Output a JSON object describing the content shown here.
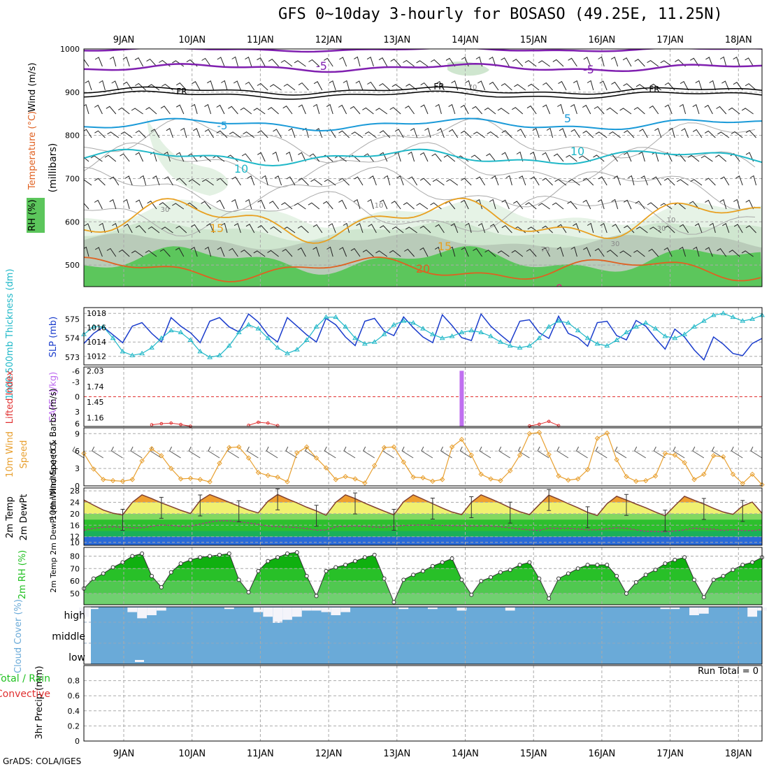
{
  "title": "GFS 0~10day 3-hourly for BOSASO (49.25E, 11.25N)",
  "credit": "GrADS: COLA/IGES",
  "colors": {
    "slp": "#1a3ccc",
    "thickness": "#20b8c8",
    "cape": "#c070f0",
    "lifted_index": "#e03030",
    "wind10": "#e8a030",
    "temp2m": "#804030",
    "dewpt": "#a04080",
    "rh_fill": "#20c020",
    "cloud": "#6aaad8",
    "purple_iso": "#8020b0",
    "blue_iso": "#1a9ad8",
    "cyan_iso": "#20b8c8",
    "orange_iso": "#e8a020",
    "dark_orange_iso": "#e06020",
    "magenta_iso": "#e02080"
  },
  "chart_data": [
    {
      "type": "heatmap",
      "name": "upper_air",
      "ylabel": "Wind (m/s)",
      "ylabel_temp": "Temperature (°C)",
      "ylabel_rh": "RH (%)",
      "ylabel_units": "(millibars)",
      "yticks": [
        "500",
        "600",
        "700",
        "800",
        "900",
        "1000"
      ],
      "ylim": [
        450,
        1000
      ],
      "xticks": [
        "9JAN",
        "10JAN",
        "11JAN",
        "12JAN",
        "13JAN",
        "14JAN",
        "15JAN",
        "16JAN",
        "17JAN",
        "18JAN"
      ],
      "isotherm_labels": [
        "-5",
        "-5",
        "FR",
        "FR",
        "FR",
        "-5",
        "5",
        "10",
        "10",
        "15",
        "15",
        "20",
        "0"
      ],
      "rh_labels": [
        "70",
        "30",
        "10",
        "30",
        "10",
        "70",
        "30"
      ]
    },
    {
      "type": "line",
      "name": "slp_thickness",
      "ylabel_left": "1000-500mb Thickness (dm)",
      "ylabel_right": "SLP (mb)",
      "yticks_left": [
        "575",
        "574",
        "573"
      ],
      "yticks_right": [
        "1018",
        "1016",
        "1014",
        "1012"
      ],
      "ylim_left": [
        572.6,
        575.6
      ],
      "ylim_right": [
        1010.8,
        1018.8
      ],
      "series": [
        {
          "name": "SLP",
          "values": [
            1013.8,
            1015.2,
            1016.1,
            1015.0,
            1013.9,
            1016.2,
            1016.7,
            1015.2,
            1014.0,
            1017.4,
            1016.2,
            1015.3,
            1013.9,
            1016.9,
            1017.4,
            1016.1,
            1015.4,
            1017.9,
            1016.8,
            1015.0,
            1014.0,
            1017.4,
            1016.2,
            1015.0,
            1014.0,
            1017.3,
            1016.4,
            1014.7,
            1013.5,
            1016.9,
            1017.3,
            1015.5,
            1014.9,
            1017.5,
            1016.0,
            1014.7,
            1013.9,
            1017.8,
            1016.3,
            1014.6,
            1014.2,
            1017.9,
            1016.2,
            1015.0,
            1013.9,
            1016.9,
            1017.1,
            1015.3,
            1014.5,
            1017.6,
            1015.2,
            1014.6,
            1013.4,
            1016.7,
            1016.9,
            1014.9,
            1014.3,
            1017.0,
            1016.2,
            1014.5,
            1013.0,
            1015.8,
            1014.7,
            1012.9,
            1011.5,
            1014.7,
            1013.7,
            1012.4,
            1012.1,
            1013.8,
            1014.5
          ]
        },
        {
          "name": "Thickness",
          "values": [
            574.2,
            574.6,
            574.6,
            574.0,
            573.3,
            573.1,
            573.2,
            573.5,
            574.0,
            574.4,
            574.3,
            573.9,
            573.3,
            573.0,
            573.1,
            573.6,
            574.3,
            574.7,
            574.5,
            574.0,
            573.5,
            573.2,
            573.4,
            573.9,
            574.6,
            575.1,
            575.1,
            574.6,
            574.0,
            573.7,
            573.8,
            574.2,
            574.7,
            574.9,
            574.8,
            574.5,
            574.2,
            574.0,
            574.1,
            574.3,
            574.4,
            574.3,
            574.1,
            573.8,
            573.6,
            573.5,
            573.6,
            574.0,
            574.6,
            574.9,
            574.8,
            574.4,
            574.0,
            573.7,
            573.6,
            573.9,
            574.3,
            574.6,
            574.8,
            574.5,
            574.1,
            574.0,
            574.2,
            574.6,
            574.9,
            575.2,
            575.3,
            575.1,
            574.9,
            575.0,
            575.2
          ]
        }
      ]
    },
    {
      "type": "bar",
      "name": "cape_li",
      "ylabel_left": "Lifted Index",
      "ylabel_right": "CAPE (J/kg)",
      "yticks_left": [
        "-6",
        "-3",
        "0",
        "3",
        "6"
      ],
      "yticks_right": [
        "2.03",
        "1.74",
        "1.45",
        "1.16"
      ],
      "ylim_left": [
        -6,
        6
      ],
      "ylim_right": [
        1.0,
        2.1
      ],
      "series": [
        {
          "name": "CAPE",
          "index": 39,
          "value": 2.03
        },
        {
          "name": "Lifted Index",
          "values": [
            null,
            null,
            null,
            null,
            null,
            null,
            null,
            5.4,
            5.0,
            4.8,
            5.3,
            5.9,
            null,
            null,
            null,
            null,
            null,
            5.6,
            4.5,
            4.8,
            5.7,
            null,
            null,
            null,
            null,
            null,
            null,
            null,
            null,
            null,
            null,
            null,
            null,
            null,
            null,
            null,
            null,
            null,
            null,
            null,
            null,
            null,
            null,
            null,
            null,
            null,
            5.8,
            5.2,
            4.2,
            5.7,
            null
          ]
        }
      ]
    },
    {
      "type": "line",
      "name": "wind10m",
      "ylabel": "10m Wind Speed & Barbs (m/s)",
      "yticks": [
        "9",
        "6",
        "3",
        "0"
      ],
      "ylim": [
        0,
        10
      ],
      "series": [
        {
          "name": "10m Wind Speed",
          "values": [
            5.6,
            2.9,
            1.1,
            0.9,
            0.8,
            1.1,
            4.3,
            6.4,
            5.2,
            3.0,
            1.2,
            1.3,
            1.1,
            0.7,
            3.9,
            6.6,
            6.7,
            4.8,
            2.3,
            1.8,
            1.5,
            0.7,
            5.7,
            6.7,
            4.8,
            3.1,
            1.1,
            1.6,
            1.2,
            0.5,
            3.5,
            6.6,
            6.7,
            4.1,
            1.5,
            1.4,
            0.8,
            1.1,
            6.7,
            8.0,
            5.3,
            2.0,
            1.2,
            0.9,
            2.6,
            5.3,
            9.0,
            9.2,
            5.4,
            1.7,
            1.0,
            1.2,
            2.8,
            8.2,
            9.1,
            4.5,
            1.6,
            0.8,
            0.9,
            1.7,
            5.6,
            5.3,
            4.0,
            1.1,
            2.0,
            5.2,
            5.0,
            2.0,
            0.4,
            2.0,
            0.2
          ]
        }
      ]
    },
    {
      "type": "area",
      "name": "temp2m",
      "ylabel": "2m Temp 2m DewPt (6hr Min/Max) (°C)",
      "yticks": [
        "28",
        "24",
        "20",
        "16",
        "12",
        "10"
      ],
      "ylim": [
        9,
        29
      ],
      "series": [
        {
          "name": "2m Temp",
          "values": [
            24.8,
            23.0,
            21.3,
            20.2,
            19.6,
            24.0,
            26.6,
            25.3,
            23.8,
            22.5,
            21.2,
            20.1,
            24.6,
            26.7,
            25.4,
            24.0,
            22.6,
            21.3,
            20.3,
            24.4,
            26.7,
            25.2,
            23.8,
            22.3,
            21.0,
            19.5,
            24.0,
            26.6,
            25.3,
            23.7,
            22.3,
            20.9,
            19.6,
            24.2,
            26.6,
            25.1,
            23.5,
            22.0,
            20.6,
            19.7,
            24.0,
            26.6,
            25.2,
            23.7,
            22.1,
            20.7,
            19.7,
            23.2,
            26.5,
            25.1,
            23.5,
            22.1,
            20.5,
            19.4,
            23.5,
            26.1,
            24.8,
            23.4,
            22.1,
            20.6,
            19.3,
            22.8,
            26.1,
            24.7,
            23.4,
            21.9,
            20.6,
            19.8,
            22.7,
            24.1,
            20.2
          ]
        },
        {
          "name": "2m DewPt",
          "values": [
            14.2,
            14.9,
            15.3,
            15.5,
            15.3,
            15.1,
            15.1,
            15.6,
            16.1,
            15.9,
            15.6,
            15.6,
            16.4,
            17.1,
            17.6,
            17.5,
            17.2,
            16.8,
            16.3,
            15.7,
            15.5,
            15.4,
            15.2,
            14.8,
            14.3,
            14.3,
            15.5,
            15.6,
            15.7,
            15.6,
            15.4,
            15.3,
            15.6,
            15.9,
            16.0,
            16.1,
            16.0,
            15.9,
            15.8,
            15.8,
            15.7,
            15.7,
            15.7,
            15.5,
            15.1,
            14.7,
            14.4,
            14.2,
            15.0,
            14.9,
            14.9,
            14.7,
            14.4,
            14.4,
            14.8,
            15.1,
            14.9,
            14.4,
            13.9,
            13.8,
            13.7,
            14.0,
            14.4,
            15.0,
            14.7,
            14.6,
            14.2,
            14.5,
            14.2,
            14.1,
            14.5
          ]
        }
      ]
    },
    {
      "type": "area",
      "name": "rh2m",
      "ylabel": "2m RH (%)",
      "yticks": [
        "80",
        "70",
        "60",
        "50"
      ],
      "ylim": [
        41,
        87
      ],
      "series": [
        {
          "name": "2m RH",
          "values": [
            54,
            62,
            66,
            71,
            75,
            80,
            82,
            64,
            55,
            67,
            74,
            77,
            79,
            80,
            81,
            82,
            61,
            51,
            68,
            76,
            79,
            82,
            83,
            64,
            48,
            68,
            71,
            73,
            76,
            79,
            81,
            62,
            43,
            61,
            65,
            68,
            72,
            75,
            78,
            61,
            49,
            60,
            63,
            67,
            69,
            73,
            75,
            62,
            46,
            62,
            66,
            70,
            73,
            73,
            73,
            64,
            50,
            59,
            65,
            69,
            74,
            77,
            79,
            61,
            47,
            61,
            64,
            69,
            73,
            75,
            79
          ]
        }
      ]
    },
    {
      "type": "bar",
      "name": "cloud_cover",
      "ylabel": "Cloud Cover (%)",
      "levels": [
        "high",
        "middle",
        "low"
      ],
      "series": [
        {
          "name": "High cloud",
          "values": [
            0.4,
            0.9,
            1,
            1,
            1,
            0.7,
            0.3,
            0.5,
            0.8,
            1,
            1,
            1,
            1,
            1,
            1,
            0.9,
            1,
            1,
            0.7,
            0.4,
            0,
            0.2,
            0.4,
            0.8,
            0.8,
            0.7,
            0.5,
            0.7,
            1,
            1,
            1,
            1,
            1,
            0.9,
            1,
            1,
            0.9,
            1,
            1,
            0.8,
            1,
            1,
            1,
            1,
            0.8,
            1,
            1,
            1,
            1,
            1,
            1,
            1,
            1,
            1,
            1,
            1,
            1,
            1,
            1,
            1,
            0.9,
            0.9,
            1,
            0.5,
            0.6,
            1,
            1,
            1,
            1,
            0.4,
            0.8
          ]
        }
      ]
    },
    {
      "type": "bar",
      "name": "precip3hr",
      "ylabel": "3hr Precip (mm)",
      "ylabel_legend_total": "Total / Rain",
      "ylabel_legend_conv": "Convective",
      "run_total": "Run Total = 0",
      "yticks": [
        "0.8",
        "0.6",
        "0.4",
        "0.2",
        "0"
      ],
      "ylim": [
        0,
        1
      ],
      "series": [
        {
          "name": "Total",
          "values": [
            0,
            0,
            0,
            0,
            0,
            0,
            0,
            0,
            0,
            0
          ]
        }
      ]
    }
  ]
}
